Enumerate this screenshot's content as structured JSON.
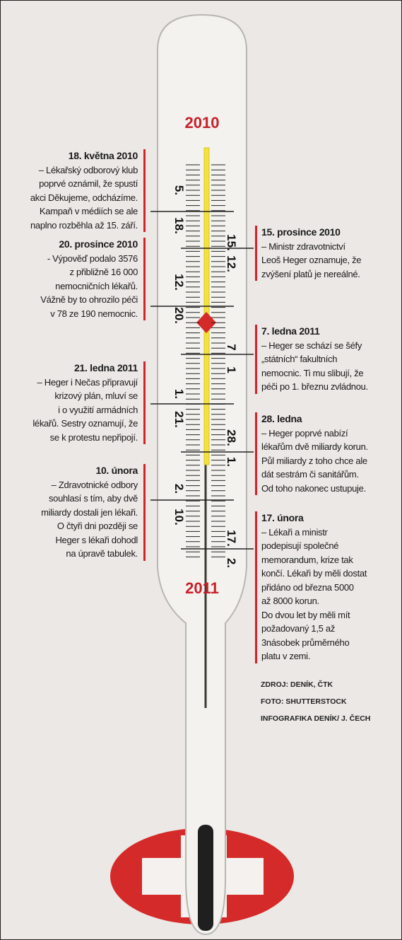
{
  "year_top": "2010",
  "year_bottom": "2011",
  "left_events": [
    {
      "date": "18. května 2010",
      "lines": [
        "– Lékařský odborový klub",
        "poprvé oznámil, že spustí",
        "akci Děkujeme, odcházíme.",
        "Kampaň v médiích se ale",
        "naplno rozběhla až 15. září."
      ]
    },
    {
      "date": "20. prosince 2010",
      "lines": [
        "- Výpověď podalo 3576",
        "z přibližně 16 000",
        "nemocničních lékařů.",
        "Vážně by to ohrozilo péči",
        "v 78 ze 190 nemocnic."
      ]
    },
    {
      "date": "21. ledna 2011",
      "lines": [
        "– Heger i Nečas připravují",
        "krizový plán, mluví se",
        "i o využití armádních",
        "lékařů. Sestry oznamují, že",
        "se k protestu nepřipojí."
      ]
    },
    {
      "date": "10. února",
      "lines": [
        "– Zdravotnické odbory",
        "souhlasí s tím, aby dvě",
        "miliardy dostali jen lékaři.",
        "O čtyři dni později se",
        "Heger s lékaři dohodl",
        "na úpravě tabulek."
      ]
    }
  ],
  "right_events": [
    {
      "date": "15. prosince 2010",
      "lines": [
        "– Ministr zdravotnictví",
        "Leoš Heger oznamuje, že",
        "zvýšení platů je nereálné."
      ]
    },
    {
      "date": "7. ledna 2011",
      "lines": [
        "– Heger se schází se šéfy",
        "„státních“ fakultních",
        "nemocnic. Ti mu slibují, že",
        "péči po 1. březnu zvládnou."
      ]
    },
    {
      "date": "28. ledna",
      "lines": [
        "– Heger poprvé nabízí",
        "lékařům dvě miliardy korun.",
        "Půl miliardy z toho chce ale",
        "dát sestrám či sanitářům.",
        "Od toho nakonec ustupuje."
      ]
    },
    {
      "date": "17. února",
      "lines": [
        "– Lékaři a ministr",
        "podepisují společné",
        "memorandum, krize tak",
        "končí. Lékaři by měli dostat",
        "přidáno od března 5000",
        "až 8000 korun.",
        "Do dvou let by měli mít",
        "požadovaný 1,5 až",
        "3násobek průměrného",
        "platu v zemi."
      ]
    }
  ],
  "scale_left": [
    "5.",
    "18.",
    "12.",
    "20.",
    "1.",
    "21.",
    "2.",
    "10."
  ],
  "scale_right": [
    "15.",
    "12.",
    "7",
    "1",
    "28.",
    "1.",
    "17.",
    "2."
  ],
  "credits": [
    "ZDROJ: DENÍK, ČTK",
    "FOTO: SHUTTERSTOCK",
    "INFOGRAFIKA DENÍK/ J. ČECH"
  ]
}
